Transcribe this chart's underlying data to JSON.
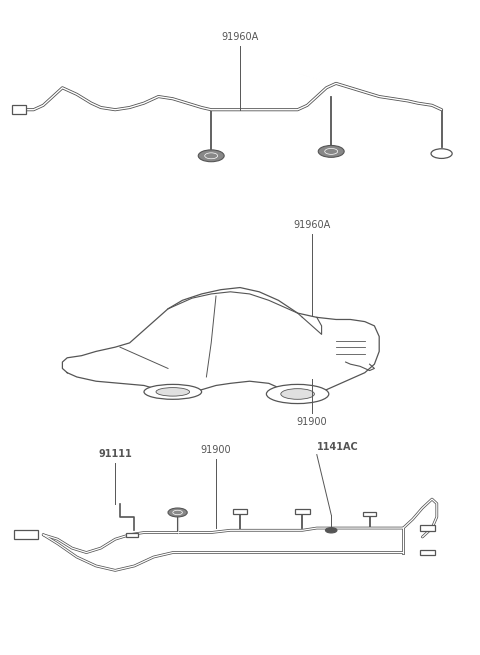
{
  "bg_color": "#ffffff",
  "line_color": "#555555",
  "fig_width": 4.8,
  "fig_height": 6.55,
  "dpi": 100,
  "labels": {
    "91960A_top": "91960A",
    "91960A_mid": "91960A",
    "91900_mid": "91900",
    "91900_bot": "91900",
    "91111_bot": "91111",
    "1141AC_bot": "1141AC"
  },
  "font_size": 7.0
}
